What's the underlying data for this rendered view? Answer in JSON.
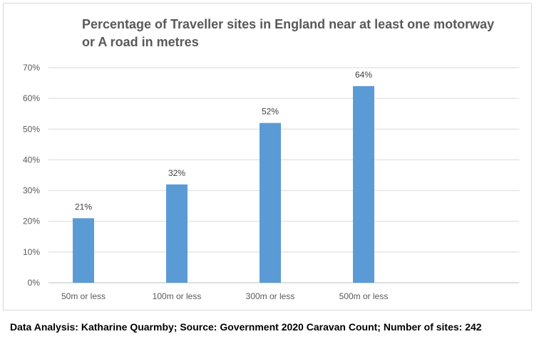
{
  "chart_data": {
    "type": "bar",
    "title": "Percentage of Traveller sites in England near at least one motorway or A road in metres",
    "categories": [
      "50m or less",
      "100m or less",
      "300m or less",
      "500m or less"
    ],
    "values": [
      21,
      32,
      52,
      64
    ],
    "value_labels": [
      "21%",
      "32%",
      "52%",
      "64%"
    ],
    "yticks": [
      "0%",
      "10%",
      "20%",
      "30%",
      "40%",
      "50%",
      "60%",
      "70%"
    ],
    "ylim": [
      0,
      70
    ],
    "xlabel": "",
    "ylabel": "",
    "grid": true,
    "bar_color": "#5b9bd5"
  },
  "footer": {
    "text": "Data Analysis: Katharine Quarmby; Source: Government 2020 Caravan Count; Number of sites: 242"
  }
}
